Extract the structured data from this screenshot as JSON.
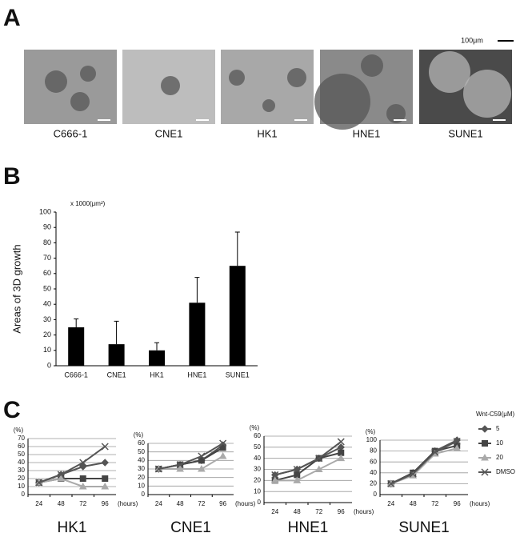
{
  "panels": {
    "A": {
      "label": "A",
      "images": [
        "C666-1",
        "CNE1",
        "HK1",
        "HNE1",
        "SUNE1"
      ],
      "scale_bar": "100μm"
    },
    "B": {
      "label": "B"
    },
    "C": {
      "label": "C"
    }
  },
  "chart_data": [
    {
      "type": "bar",
      "ylabel": "Areas of 3D growth",
      "unit": "x 1000(μm²)",
      "categories": [
        "C666-1",
        "CNE1",
        "HK1",
        "HNE1",
        "SUNE1"
      ],
      "values": [
        25,
        14,
        10,
        41,
        65
      ],
      "errors": [
        5.5,
        15,
        5,
        16.5,
        22
      ],
      "color": "#000000",
      "ylim": [
        0,
        100
      ],
      "yticks": [
        0,
        10,
        20,
        30,
        40,
        50,
        60,
        70,
        80,
        90,
        100
      ],
      "grid": false
    },
    {
      "type": "line",
      "title": "HK1",
      "ylabel": "(%)",
      "xlabel": "(hours)",
      "categories": [
        "24",
        "48",
        "72",
        "96"
      ],
      "ylim": [
        0,
        70
      ],
      "yticks": [
        0,
        10,
        20,
        30,
        40,
        50,
        60,
        70
      ],
      "grid": true,
      "series": [
        {
          "name": "5",
          "color": "#555555",
          "marker": "diamond",
          "values": [
            15,
            25,
            35,
            40
          ]
        },
        {
          "name": "10",
          "color": "#444444",
          "marker": "square",
          "values": [
            15,
            20,
            20,
            20
          ]
        },
        {
          "name": "20",
          "color": "#aaaaaa",
          "marker": "triangle",
          "values": [
            15,
            20,
            10,
            10
          ]
        },
        {
          "name": "DMSO",
          "color": "#555555",
          "marker": "cross",
          "values": [
            15,
            25,
            40,
            60
          ]
        }
      ]
    },
    {
      "type": "line",
      "title": "CNE1",
      "ylabel": "(%)",
      "xlabel": "(hours)",
      "categories": [
        "24",
        "48",
        "72",
        "96"
      ],
      "ylim": [
        0,
        60
      ],
      "yticks": [
        0,
        10,
        20,
        30,
        40,
        50,
        60
      ],
      "grid": true,
      "series": [
        {
          "name": "5",
          "color": "#555555",
          "marker": "diamond",
          "values": [
            30,
            35,
            40,
            58
          ]
        },
        {
          "name": "10",
          "color": "#444444",
          "marker": "square",
          "values": [
            30,
            35,
            40,
            55
          ]
        },
        {
          "name": "20",
          "color": "#aaaaaa",
          "marker": "triangle",
          "values": [
            30,
            30,
            30,
            45
          ]
        },
        {
          "name": "DMSO",
          "color": "#555555",
          "marker": "cross",
          "values": [
            30,
            35,
            45,
            60
          ]
        }
      ]
    },
    {
      "type": "line",
      "title": "HNE1",
      "ylabel": "(%)",
      "xlabel": "(hours)",
      "categories": [
        "24",
        "48",
        "72",
        "96"
      ],
      "ylim": [
        0,
        60
      ],
      "yticks": [
        0,
        10,
        20,
        30,
        40,
        50,
        60
      ],
      "grid": true,
      "series": [
        {
          "name": "5",
          "color": "#555555",
          "marker": "diamond",
          "values": [
            25,
            30,
            40,
            50
          ]
        },
        {
          "name": "10",
          "color": "#444444",
          "marker": "square",
          "values": [
            20,
            25,
            40,
            45
          ]
        },
        {
          "name": "20",
          "color": "#aaaaaa",
          "marker": "triangle",
          "values": [
            20,
            20,
            30,
            40
          ]
        },
        {
          "name": "DMSO",
          "color": "#555555",
          "marker": "cross",
          "values": [
            25,
            30,
            40,
            55
          ]
        }
      ]
    },
    {
      "type": "line",
      "title": "SUNE1",
      "ylabel": "(%)",
      "xlabel": "(hours)",
      "legend_title": "Wnt-C59(μM)",
      "categories": [
        "24",
        "48",
        "72",
        "96"
      ],
      "ylim": [
        0,
        100
      ],
      "yticks": [
        0,
        20,
        40,
        60,
        80,
        100
      ],
      "grid": true,
      "series": [
        {
          "name": "5",
          "color": "#555555",
          "marker": "diamond",
          "values": [
            20,
            40,
            80,
            100
          ]
        },
        {
          "name": "10",
          "color": "#444444",
          "marker": "square",
          "values": [
            20,
            40,
            80,
            90
          ]
        },
        {
          "name": "20",
          "color": "#aaaaaa",
          "marker": "triangle",
          "values": [
            20,
            35,
            75,
            85
          ]
        },
        {
          "name": "DMSO",
          "color": "#555555",
          "marker": "cross",
          "values": [
            20,
            38,
            78,
            98
          ]
        }
      ]
    }
  ]
}
